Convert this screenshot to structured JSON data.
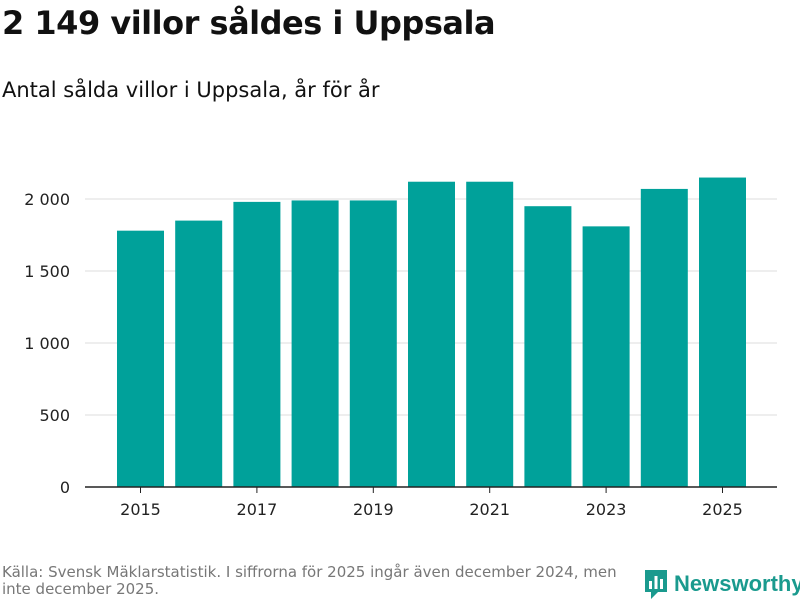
{
  "header": {
    "title": "2 149 villor såldes i Uppsala",
    "subtitle": "Antal sålda villor i Uppsala, år för år"
  },
  "footer": {
    "source_note": "Källa: Svensk Mäklarstatistik. I siffrorna för 2025 ingår även december 2024, men inte december 2025.",
    "brand_name": "Newsworthy"
  },
  "colors": {
    "bar": "#00a19a",
    "grid": "#dddddd",
    "axis": "#222222",
    "brand": "#1a9a8e"
  },
  "chart_data": {
    "type": "bar",
    "title": "2 149 villor såldes i Uppsala",
    "subtitle": "Antal sålda villor i Uppsala, år för år",
    "xlabel": "",
    "ylabel": "",
    "categories": [
      "2015",
      "2016",
      "2017",
      "2018",
      "2019",
      "2020",
      "2021",
      "2022",
      "2023",
      "2024",
      "2025"
    ],
    "values": [
      1780,
      1850,
      1980,
      1990,
      1990,
      2120,
      2120,
      1950,
      1810,
      2070,
      2149
    ],
    "x_tick_labels": [
      "2015",
      "2017",
      "2019",
      "2021",
      "2023",
      "2025"
    ],
    "y_ticks": [
      0,
      500,
      1000,
      1500,
      2000
    ],
    "y_tick_labels": [
      "0",
      "500",
      "1 000",
      "1 500",
      "2 000"
    ],
    "ylim": [
      0,
      2000
    ],
    "grid": true,
    "legend": "none"
  }
}
